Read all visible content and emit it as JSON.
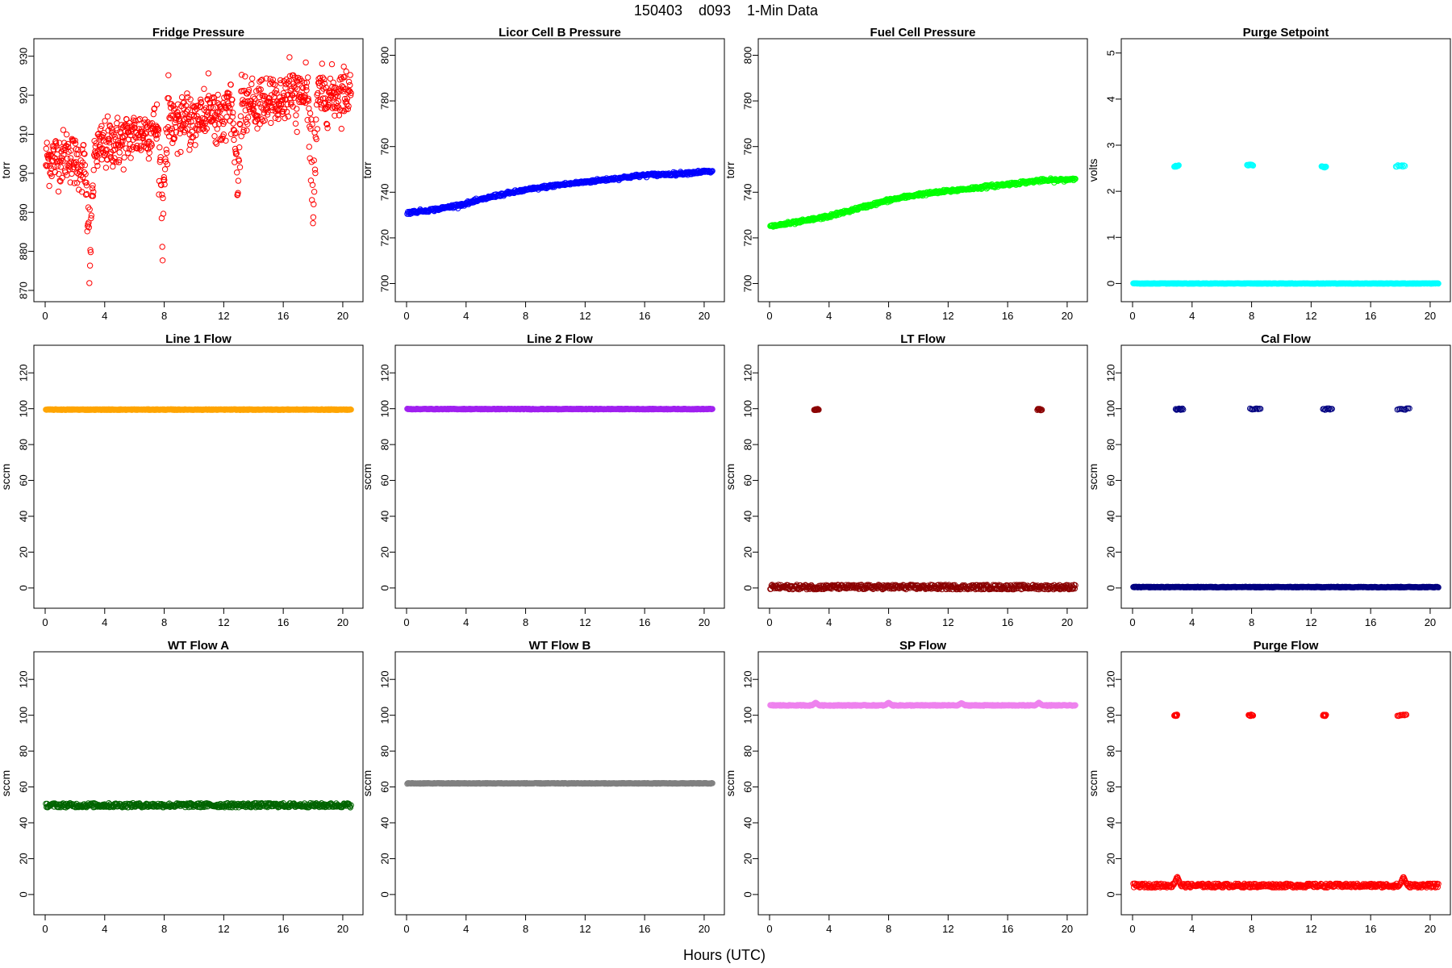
{
  "figure": {
    "title": "150403    d093    1-Min Data",
    "xlabel": "Hours (UTC)",
    "panels_layout": "3 rows x 4 columns"
  },
  "chart_data": [
    {
      "type": "scatter",
      "title": "Fridge Pressure",
      "ylabel": "torr",
      "color": "#ff0000",
      "marker": "open-circle",
      "xlim": [
        0,
        20.6
      ],
      "ylim": [
        870,
        932
      ],
      "xticks": [
        0,
        4,
        8,
        12,
        16,
        20
      ],
      "yticks": [
        870,
        880,
        890,
        900,
        910,
        920,
        930
      ],
      "x": [
        0,
        0.5,
        1,
        1.5,
        2,
        2.5,
        3,
        3.5,
        4,
        4.5,
        5,
        5.5,
        6,
        6.5,
        7,
        7.5,
        8,
        8.5,
        9,
        9.5,
        10,
        10.5,
        11,
        11.5,
        12,
        12.5,
        13,
        13.5,
        14,
        14.5,
        15,
        15.5,
        16,
        16.5,
        17,
        17.5,
        18,
        18.5,
        19,
        19.5,
        20,
        20.5
      ],
      "y": [
        903,
        904,
        904,
        905,
        903,
        902,
        904,
        906,
        907,
        908,
        908,
        909,
        910,
        910,
        911,
        912,
        912,
        913,
        913,
        914,
        914,
        915,
        915,
        915,
        915,
        916,
        916,
        917,
        917,
        918,
        918,
        919,
        919,
        920,
        920,
        920,
        920,
        920,
        920,
        920,
        921,
        921
      ],
      "spread": 6,
      "dips": [
        {
          "x": 3.0,
          "depth": 30,
          "width": 0.35
        },
        {
          "x": 7.9,
          "depth": 28,
          "width": 0.35
        },
        {
          "x": 12.9,
          "depth": 24,
          "width": 0.3
        },
        {
          "x": 18.0,
          "depth": 30,
          "width": 0.35
        }
      ]
    },
    {
      "type": "scatter",
      "title": "Licor Cell B Pressure",
      "ylabel": "torr",
      "color": "#0000ff",
      "marker": "open-circle",
      "xlim": [
        0,
        20.6
      ],
      "ylim": [
        697,
        803
      ],
      "xticks": [
        0,
        4,
        8,
        12,
        16,
        20
      ],
      "yticks": [
        700,
        720,
        740,
        760,
        780,
        800
      ],
      "x": [
        0,
        2,
        4,
        6,
        8,
        10,
        12,
        14,
        16,
        18,
        20,
        20.5
      ],
      "y": [
        731,
        732.5,
        735,
        738.5,
        741,
        743,
        744.5,
        746,
        747.5,
        748,
        749,
        749
      ],
      "spread": 0.6
    },
    {
      "type": "scatter",
      "title": "Fuel Cell Pressure",
      "ylabel": "torr",
      "color": "#00ff00",
      "marker": "open-circle",
      "xlim": [
        0,
        20.6
      ],
      "ylim": [
        697,
        803
      ],
      "xticks": [
        0,
        4,
        8,
        12,
        16,
        20
      ],
      "yticks": [
        700,
        720,
        740,
        760,
        780,
        800
      ],
      "x": [
        0,
        2,
        4,
        6,
        8,
        10,
        12,
        14,
        16,
        18,
        20,
        20.5
      ],
      "y": [
        725,
        727,
        729.5,
        733,
        736.5,
        739,
        740.5,
        742,
        743.5,
        745,
        745.5,
        746
      ],
      "spread": 0.6
    },
    {
      "type": "scatter",
      "title": "Purge Setpoint",
      "ylabel": "volts",
      "color": "#00ffff",
      "marker": "open-circle",
      "xlim": [
        0,
        20.6
      ],
      "ylim": [
        -0.15,
        5.1
      ],
      "xticks": [
        0,
        4,
        8,
        12,
        16,
        20
      ],
      "yticks": [
        0,
        1,
        2,
        3,
        4,
        5
      ],
      "baseline": 0,
      "spread": 0.01,
      "events": [
        {
          "x_start": 2.8,
          "x_end": 3.1,
          "value": 2.55
        },
        {
          "x_start": 7.7,
          "x_end": 8.1,
          "value": 2.57
        },
        {
          "x_start": 12.7,
          "x_end": 13.0,
          "value": 2.53
        },
        {
          "x_start": 17.7,
          "x_end": 18.3,
          "value": 2.55
        }
      ]
    },
    {
      "type": "scatter",
      "title": "Line 1 Flow",
      "ylabel": "sccm",
      "color": "#ffa500",
      "marker": "open-circle",
      "xlim": [
        0,
        20.6
      ],
      "ylim": [
        -5,
        130
      ],
      "xticks": [
        0,
        4,
        8,
        12,
        16,
        20
      ],
      "yticks": [
        0,
        20,
        40,
        60,
        80,
        100,
        120
      ],
      "baseline": 99.5,
      "spread": 0.4
    },
    {
      "type": "scatter",
      "title": "Line 2 Flow",
      "ylabel": "sccm",
      "color": "#a020f0",
      "marker": "open-circle",
      "xlim": [
        0,
        20.6
      ],
      "ylim": [
        -5,
        130
      ],
      "xticks": [
        0,
        4,
        8,
        12,
        16,
        20
      ],
      "yticks": [
        0,
        20,
        40,
        60,
        80,
        100,
        120
      ],
      "baseline": 99.8,
      "spread": 0.4
    },
    {
      "type": "scatter",
      "title": "LT Flow",
      "ylabel": "sccm",
      "color": "#8b0000",
      "marker": "open-circle",
      "xlim": [
        0,
        20.6
      ],
      "ylim": [
        -5,
        130
      ],
      "xticks": [
        0,
        4,
        8,
        12,
        16,
        20
      ],
      "yticks": [
        0,
        20,
        40,
        60,
        80,
        100,
        120
      ],
      "baseline": 0.5,
      "spread": 2.6,
      "events": [
        {
          "x_start": 3.0,
          "x_end": 3.3,
          "value": 99.5
        },
        {
          "x_start": 18.0,
          "x_end": 18.3,
          "value": 99.5
        }
      ]
    },
    {
      "type": "scatter",
      "title": "Cal Flow",
      "ylabel": "sccm",
      "color": "#000080",
      "marker": "open-circle",
      "xlim": [
        0,
        20.6
      ],
      "ylim": [
        -5,
        130
      ],
      "xticks": [
        0,
        4,
        8,
        12,
        16,
        20
      ],
      "yticks": [
        0,
        20,
        40,
        60,
        80,
        100,
        120
      ],
      "baseline": 0.5,
      "spread": 0.4,
      "events": [
        {
          "x_start": 2.9,
          "x_end": 3.4,
          "value": 99.8
        },
        {
          "x_start": 7.9,
          "x_end": 8.6,
          "value": 99.8
        },
        {
          "x_start": 12.8,
          "x_end": 13.4,
          "value": 99.8
        },
        {
          "x_start": 17.8,
          "x_end": 18.6,
          "value": 99.8
        }
      ]
    },
    {
      "type": "scatter",
      "title": "WT Flow A",
      "ylabel": "sccm",
      "color": "#006400",
      "marker": "open-circle",
      "xlim": [
        0,
        20.6
      ],
      "ylim": [
        -5,
        130
      ],
      "xticks": [
        0,
        4,
        8,
        12,
        16,
        20
      ],
      "yticks": [
        0,
        20,
        40,
        60,
        80,
        100,
        120
      ],
      "baseline": 49.8,
      "spread": 2.4
    },
    {
      "type": "scatter",
      "title": "WT Flow B",
      "ylabel": "sccm",
      "color": "#808080",
      "marker": "open-circle",
      "xlim": [
        0,
        20.6
      ],
      "ylim": [
        -5,
        130
      ],
      "xticks": [
        0,
        4,
        8,
        12,
        16,
        20
      ],
      "yticks": [
        0,
        20,
        40,
        60,
        80,
        100,
        120
      ],
      "baseline": 62,
      "spread": 0.4
    },
    {
      "type": "scatter",
      "title": "SP Flow",
      "ylabel": "sccm",
      "color": "#ee82ee",
      "marker": "open-circle",
      "xlim": [
        0,
        20.6
      ],
      "ylim": [
        -5,
        130
      ],
      "xticks": [
        0,
        4,
        8,
        12,
        16,
        20
      ],
      "yticks": [
        0,
        20,
        40,
        60,
        80,
        100,
        120
      ],
      "baseline": 105.5,
      "spread": 0.5,
      "bumps": [
        {
          "x": 3.1,
          "value": 107
        },
        {
          "x": 8.0,
          "value": 107
        },
        {
          "x": 12.9,
          "value": 106.8
        },
        {
          "x": 18.1,
          "value": 107
        }
      ]
    },
    {
      "type": "scatter",
      "title": "Purge Flow",
      "ylabel": "sccm",
      "color": "#ff0000",
      "marker": "open-circle",
      "xlim": [
        0,
        20.6
      ],
      "ylim": [
        -5,
        130
      ],
      "xticks": [
        0,
        4,
        8,
        12,
        16,
        20
      ],
      "yticks": [
        0,
        20,
        40,
        60,
        80,
        100,
        120
      ],
      "baseline": 5,
      "spread": 2.2,
      "events": [
        {
          "x_start": 2.8,
          "x_end": 3.0,
          "value": 100
        },
        {
          "x_start": 7.8,
          "x_end": 8.1,
          "value": 100
        },
        {
          "x_start": 12.8,
          "x_end": 13.0,
          "value": 100
        },
        {
          "x_start": 17.8,
          "x_end": 18.4,
          "value": 100
        }
      ],
      "bumps": [
        {
          "x": 3.0,
          "value": 10
        },
        {
          "x": 18.2,
          "value": 10
        }
      ]
    }
  ]
}
